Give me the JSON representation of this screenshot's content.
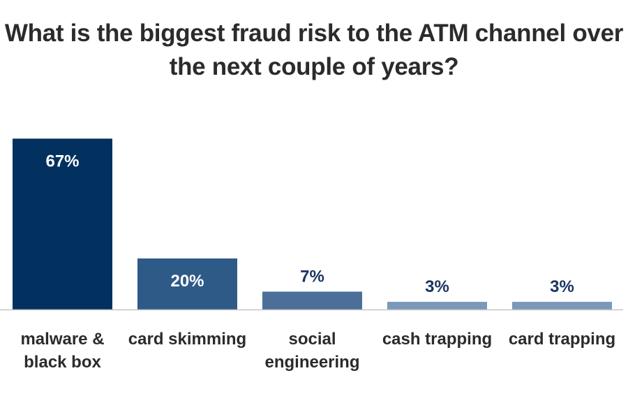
{
  "chart_data": {
    "type": "bar",
    "title": "What is the biggest fraud risk to the ATM channel over the next couple of years?",
    "categories": [
      [
        "malware &",
        "black box"
      ],
      [
        "card skimming"
      ],
      [
        "social",
        "engineering"
      ],
      [
        "cash trapping"
      ],
      [
        "card trapping"
      ]
    ],
    "values": [
      67,
      20,
      7,
      3,
      3
    ],
    "value_labels": [
      "67%",
      "20%",
      "7%",
      "3%",
      "3%"
    ],
    "bar_colors": [
      "#03315f",
      "#2e5a88",
      "#4b6f99",
      "#7a98b9",
      "#7a98b9"
    ],
    "label_colors": [
      "#ffffff",
      "#ffffff",
      "#1a3560",
      "#1a3560",
      "#1a3560"
    ],
    "ylim": [
      0,
      100
    ],
    "grid": false,
    "legend": "none"
  }
}
